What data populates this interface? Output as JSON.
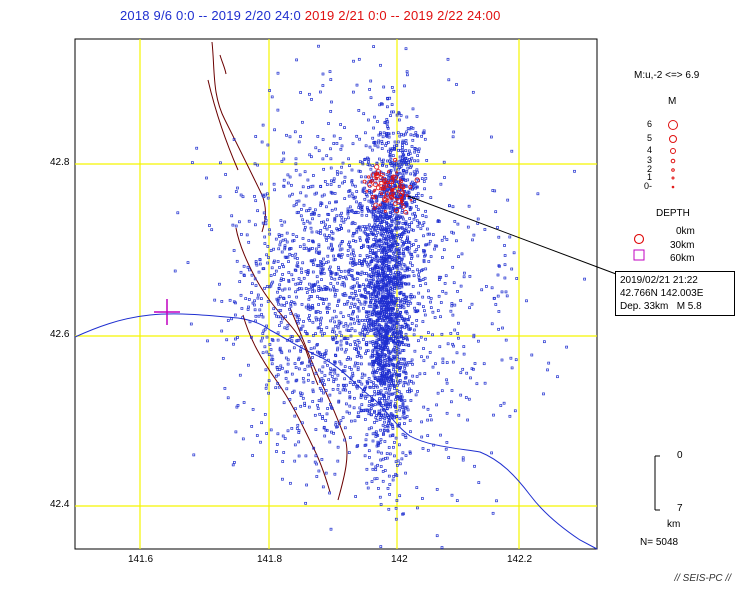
{
  "title": {
    "range_blue": "2018 9/6 0:0 -- 2019 2/20 24:0",
    "range_red": "2019 2/21  0:0 -- 2019 2/22 24:00"
  },
  "axes": {
    "lat_ticks": [
      "42.8",
      "42.6",
      "42.4"
    ],
    "lon_ticks": [
      "141.6",
      "141.8",
      "142",
      "142.2"
    ]
  },
  "legend": {
    "mag_range": "M:u,-2 <=> 6.9",
    "mag_header": "M",
    "mag_labels": [
      "6",
      "5",
      "4",
      "3",
      "2",
      "1",
      "0-"
    ],
    "depth_header": "DEPTH",
    "depth_labels": [
      "0km",
      "30km",
      "60km"
    ]
  },
  "event_popup": {
    "datetime": "2019/02/21 21:22",
    "location": "42.766N  142.003E",
    "depth": "Dep. 33km",
    "magnitude": "M 5.8"
  },
  "scale_bar": {
    "top": "0",
    "bottom": "7",
    "unit": "km"
  },
  "count": "N= 5048",
  "footer": "// SEIS-PC //",
  "colors": {
    "blue": "#1f2fd0",
    "red": "#e01010",
    "grid": "#f5f500",
    "coast": "#1f2fd0",
    "fault": "#6b0000",
    "station": "#c000c0"
  }
}
